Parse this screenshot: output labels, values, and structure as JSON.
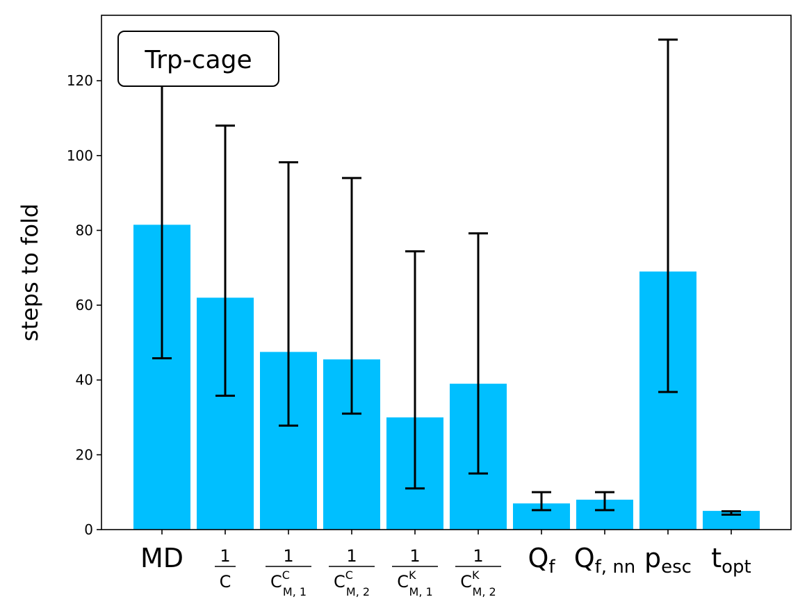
{
  "chart_data": {
    "type": "bar",
    "ylabel": "steps to fold",
    "xlabel": "",
    "annotation": "Trp-cage",
    "annotation_position": "top-left",
    "ylim": [
      0,
      137.5
    ],
    "yticks": [
      0,
      20,
      40,
      60,
      80,
      100,
      120
    ],
    "grid": false,
    "bar_color": "#00bfff",
    "errorbar_color": "#000000",
    "categories": [
      {
        "base": "MD"
      },
      {
        "frac": true,
        "num": "1",
        "den_base": "C"
      },
      {
        "frac": true,
        "num": "1",
        "den_base": "C",
        "den_sup": "C",
        "den_sub": "M, 1"
      },
      {
        "frac": true,
        "num": "1",
        "den_base": "C",
        "den_sup": "C",
        "den_sub": "M, 2"
      },
      {
        "frac": true,
        "num": "1",
        "den_base": "C",
        "den_sup": "K",
        "den_sub": "M, 1"
      },
      {
        "frac": true,
        "num": "1",
        "den_base": "C",
        "den_sup": "K",
        "den_sub": "M, 2"
      },
      {
        "base": "Q",
        "sub": "f"
      },
      {
        "base": "Q",
        "sub": "f, nn"
      },
      {
        "base": "p",
        "sub": "esc"
      },
      {
        "base": "t",
        "sub": "opt"
      }
    ],
    "values": [
      81.5,
      62,
      47.5,
      45.5,
      30,
      39,
      7,
      8,
      69,
      5
    ],
    "err_low": [
      45.8,
      35.8,
      27.8,
      31,
      11,
      15,
      5.2,
      5.2,
      36.8,
      4
    ],
    "err_high": [
      127,
      108,
      98.2,
      94,
      74.4,
      79.2,
      10,
      10,
      131,
      4.9
    ]
  }
}
